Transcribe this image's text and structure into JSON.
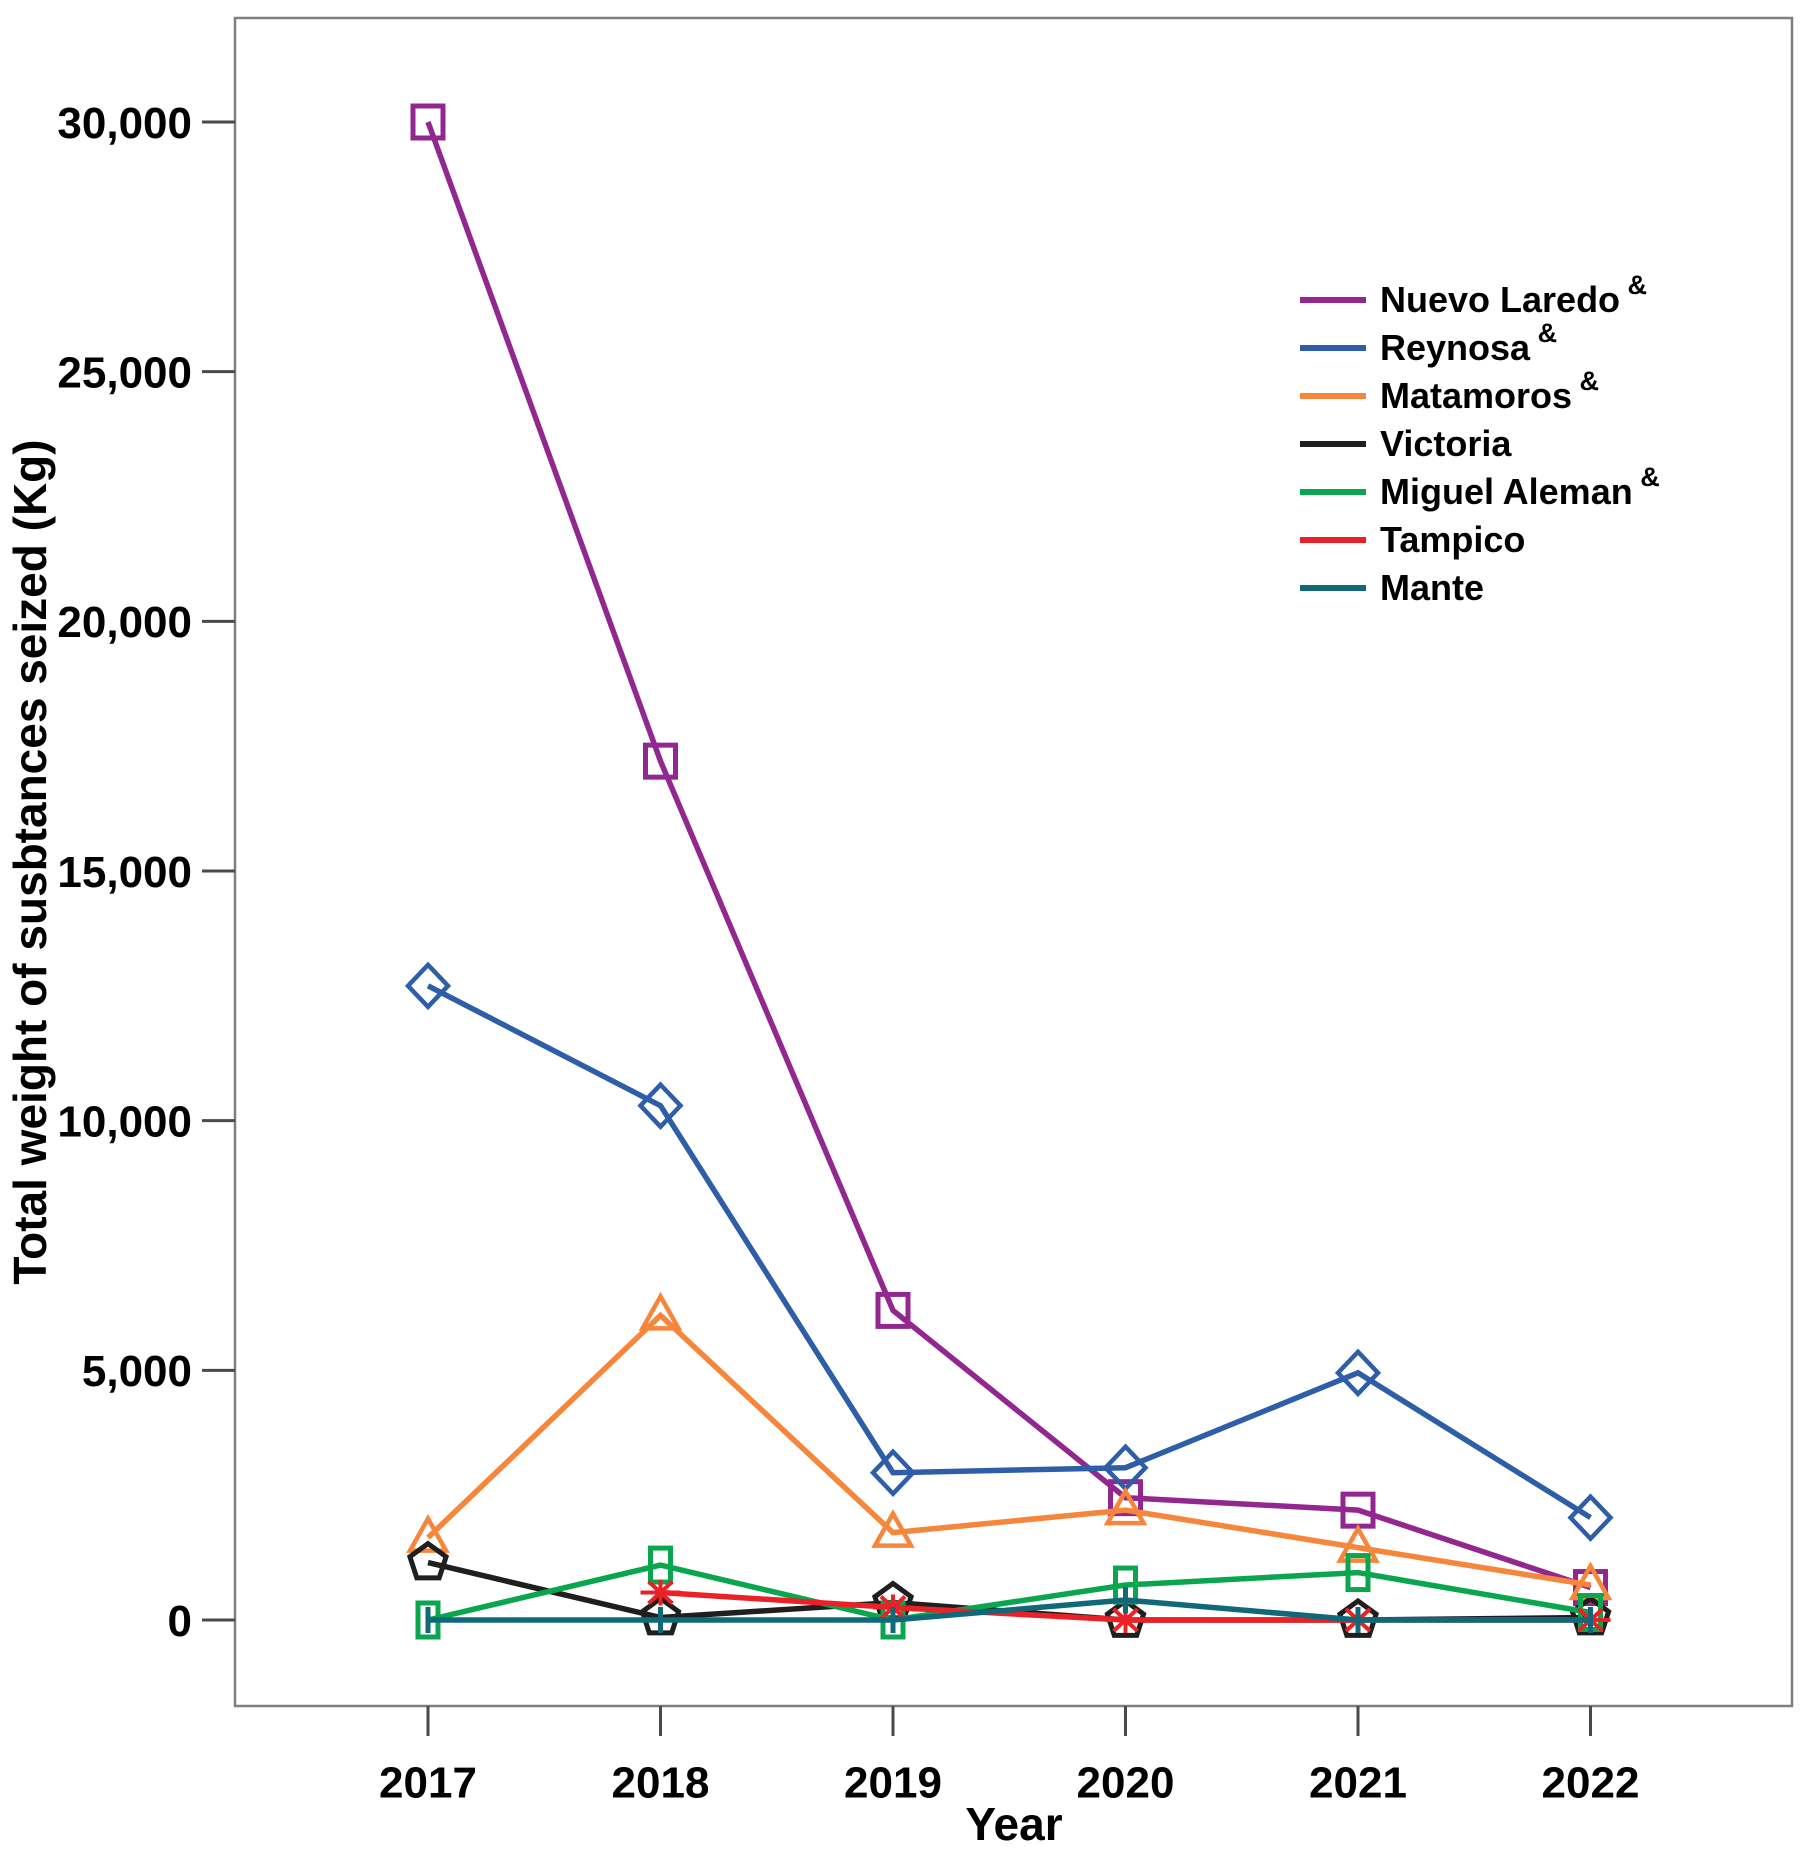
{
  "figure": {
    "x_axis_title": "Year",
    "y_axis_title": "Total weight of susbtances seized (Kg)"
  },
  "chart_data": {
    "type": "line",
    "title": "",
    "xlabel": "Year",
    "ylabel": "Total weight of susbtances seized (Kg)",
    "categories": [
      2017,
      2018,
      2019,
      2020,
      2021,
      2022
    ],
    "xtick_labels": [
      "2017",
      "2018",
      "2019",
      "2020",
      "2021",
      "2022"
    ],
    "yticks": [
      0,
      5000,
      10000,
      15000,
      20000,
      25000,
      30000
    ],
    "ytick_labels": [
      "0",
      "5,000",
      "10,000",
      "15,000",
      "20,000",
      "25,000",
      "30,000"
    ],
    "ylim": [
      -1700,
      32100
    ],
    "grid": false,
    "legend_position": "upper-right-inside",
    "series": [
      {
        "name": "Nuevo Laredo",
        "sup": "&",
        "color": "#92278F",
        "marker": "square",
        "values": [
          30000,
          17200,
          6200,
          2450,
          2200,
          650
        ]
      },
      {
        "name": "Reynosa",
        "sup": "&",
        "color": "#2F5EA8",
        "marker": "diamond",
        "values": [
          12700,
          10300,
          2950,
          3050,
          4950,
          2050
        ]
      },
      {
        "name": "Matamoros",
        "sup": "&",
        "color": "#F6863B",
        "marker": "triangle",
        "values": [
          1650,
          6100,
          1750,
          2200,
          1450,
          700
        ]
      },
      {
        "name": "Victoria",
        "sup": "",
        "color": "#1F1F1F",
        "marker": "pentagon",
        "values": [
          1150,
          50,
          350,
          0,
          0,
          50
        ]
      },
      {
        "name": "Miguel Aleman",
        "sup": "&",
        "color": "#0AA64F",
        "marker": "rect",
        "values": [
          0,
          1100,
          0,
          700,
          950,
          150
        ]
      },
      {
        "name": "Tampico",
        "sup": "",
        "color": "#EC2027",
        "marker": "star",
        "values": [
          null,
          550,
          250,
          0,
          0,
          0
        ]
      },
      {
        "name": "Mante",
        "sup": "",
        "color": "#116879",
        "marker": "vline",
        "values": [
          0,
          0,
          0,
          400,
          0,
          0
        ]
      }
    ]
  }
}
